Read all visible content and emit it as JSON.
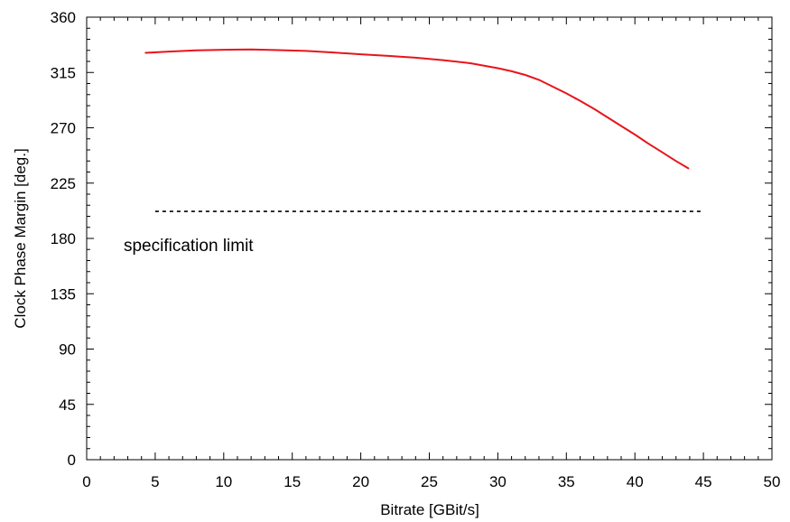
{
  "chart_data": {
    "type": "line",
    "title": "",
    "xlabel": "Bitrate [GBit/s]",
    "ylabel": "Clock Phase Margin [deg.]",
    "xlim": [
      0,
      50
    ],
    "ylim": [
      0,
      360
    ],
    "x_ticks": [
      0,
      5,
      10,
      15,
      20,
      25,
      30,
      35,
      40,
      45,
      50
    ],
    "y_ticks": [
      0,
      45,
      90,
      135,
      180,
      225,
      270,
      315,
      360
    ],
    "x_minor_step": 1,
    "y_minor_step": 9,
    "grid": false,
    "series": [
      {
        "color": "#e8141b",
        "style": "solid",
        "x": [
          4.3,
          6,
          8,
          10,
          12,
          14,
          16,
          18,
          20,
          22,
          24,
          26,
          28,
          30,
          31,
          32,
          33,
          34,
          35,
          36,
          37,
          38,
          39,
          40,
          41,
          42,
          43,
          43.9
        ],
        "y": [
          331,
          332,
          333,
          333.5,
          333.7,
          333.2,
          332.5,
          331.3,
          329.8,
          328.5,
          327,
          325,
          322.5,
          318.5,
          316,
          313,
          309,
          303.5,
          298,
          292,
          285.5,
          278.5,
          271.5,
          264.5,
          257,
          250,
          243,
          237
        ]
      },
      {
        "color": "#000000",
        "style": "dashed",
        "x": [
          5,
          45
        ],
        "y": [
          202,
          202
        ]
      }
    ],
    "annotations": [
      {
        "text": "specification limit",
        "x": 2.7,
        "y": 175
      }
    ]
  }
}
